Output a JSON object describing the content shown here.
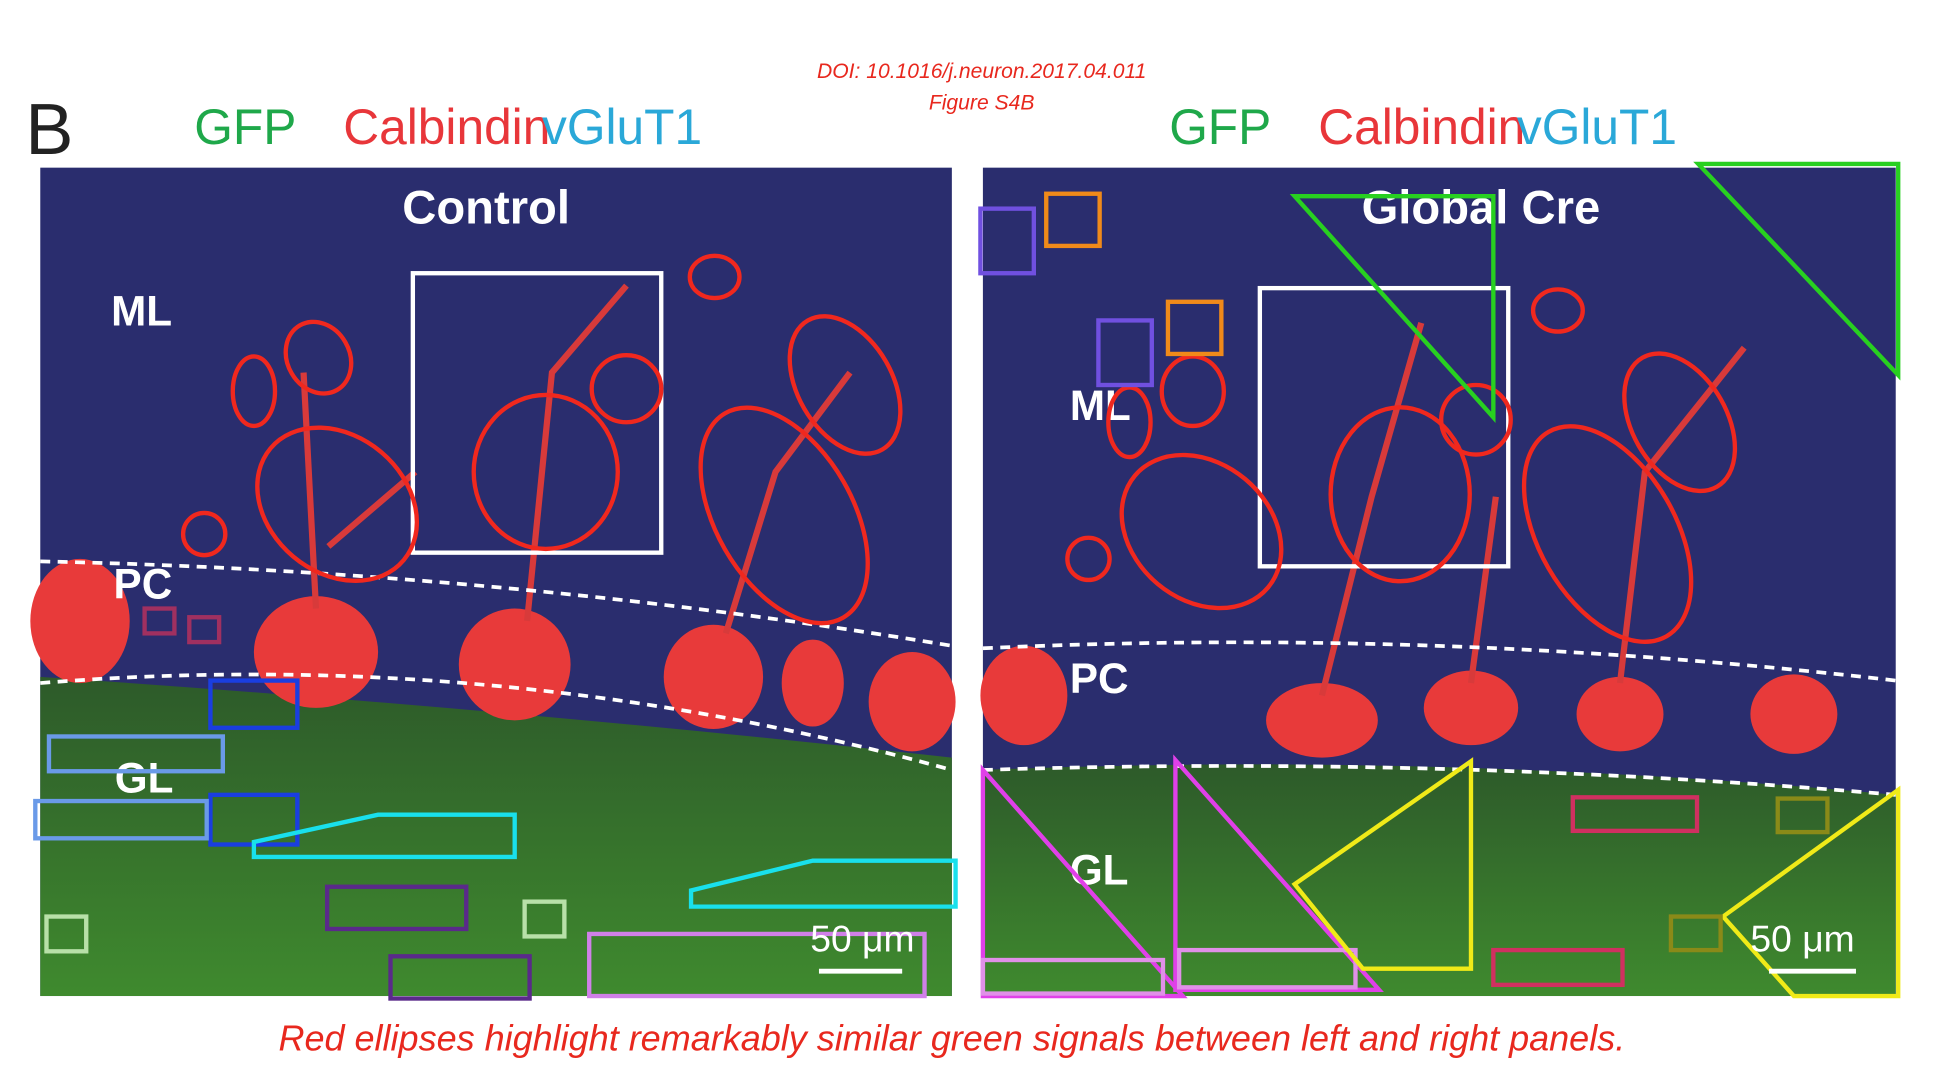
{
  "header": {
    "doi": "DOI: 10.1016/j.neuron.2017.04.011",
    "figure": "Figure S4B"
  },
  "panel_letter": "B",
  "panels": [
    {
      "stains": [
        "GFP",
        "Calbindin",
        "vGluT1"
      ],
      "title": "Control",
      "layers": [
        "ML",
        "PC",
        "GL"
      ],
      "scale_bar": "50 μm"
    },
    {
      "stains": [
        "GFP",
        "Calbindin",
        "vGluT1"
      ],
      "title": "Global Cre",
      "layers": [
        "ML",
        "PC",
        "GL"
      ],
      "scale_bar": "50 μm"
    }
  ],
  "caption": "Red ellipses highlight remarkably similar green signals between left and right panels."
}
